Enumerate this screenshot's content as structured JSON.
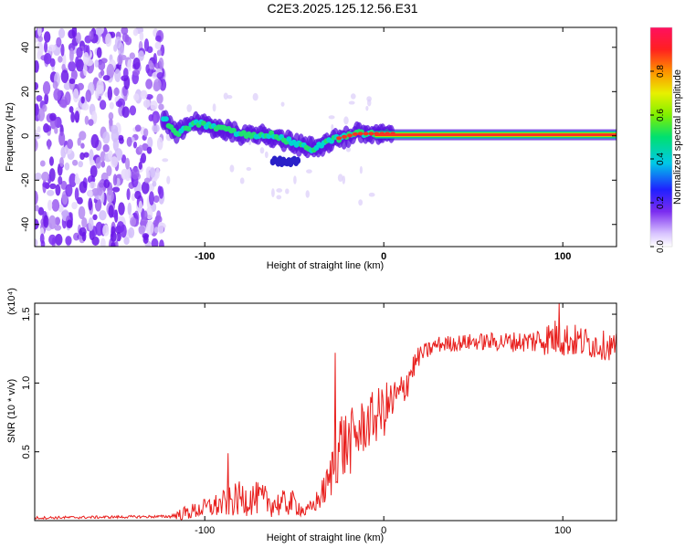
{
  "title": "C2E3.2025.125.12.56.E31",
  "chart_data": [
    {
      "type": "heatmap",
      "xlabel": "Height of straight line (km)",
      "ylabel": "Frequency (Hz)",
      "xlim": [
        -195,
        130
      ],
      "ylim": [
        -50,
        49
      ],
      "x_ticks": [
        -100,
        0,
        100
      ],
      "x_tick_labels": [
        "-100",
        "0",
        "100"
      ],
      "y_ticks": [
        -40,
        -20,
        0,
        20,
        40
      ],
      "y_tick_labels": [
        "-40",
        "-20",
        "0",
        "20",
        "40"
      ],
      "colorbar": {
        "label": "Normalized spectral amplitude",
        "range": [
          0,
          1
        ],
        "ticks": [
          0.0,
          0.2,
          0.4,
          0.6,
          0.8
        ],
        "tick_labels": [
          "0.0",
          "0.2",
          "0.4",
          "0.6",
          "0.8"
        ]
      },
      "ridge": {
        "x": [
          -123,
          -115,
          -105,
          -95,
          -85,
          -75,
          -68,
          -60,
          -55,
          -50,
          -45,
          -40,
          -35,
          -30,
          -25,
          -20,
          -15,
          -10,
          -5,
          0,
          5,
          20,
          60,
          100,
          130
        ],
        "frequency": [
          8,
          1,
          6,
          4,
          2,
          0,
          1,
          0,
          -2,
          -3,
          -5,
          -6,
          -4,
          -2,
          -1,
          0,
          1,
          1,
          1,
          1,
          1,
          0.5,
          0.5,
          0.5,
          0.5
        ]
      },
      "noise_region_x": [
        -195,
        -123
      ]
    },
    {
      "type": "line",
      "xlabel": "Height of straight line (km)",
      "ylabel": "SNR (10 * v/v)",
      "y_multiplier": "(x10⁴)",
      "xlim": [
        -195,
        130
      ],
      "ylim": [
        0,
        1.58
      ],
      "x_ticks": [
        -100,
        0,
        100
      ],
      "x_tick_labels": [
        "-100",
        "0",
        "100"
      ],
      "y_ticks": [
        0.5,
        1.0,
        1.5
      ],
      "y_tick_labels": [
        "0.5",
        "1.0",
        "1.5"
      ],
      "color": "#e8201e",
      "envelope": {
        "x": [
          -195,
          -120,
          -112,
          -100,
          -90,
          -80,
          -70,
          -60,
          -50,
          -44,
          -40,
          -35,
          -30,
          -27,
          -25,
          -20,
          -10,
          0,
          10,
          15,
          20,
          30,
          50,
          80,
          95,
          110,
          130
        ],
        "mean": [
          0.02,
          0.03,
          0.05,
          0.09,
          0.12,
          0.16,
          0.16,
          0.12,
          0.13,
          0.06,
          0.1,
          0.18,
          0.3,
          0.5,
          0.55,
          0.55,
          0.7,
          0.8,
          0.92,
          1.08,
          1.2,
          1.28,
          1.3,
          1.3,
          1.33,
          1.3,
          1.26
        ],
        "amplitude": [
          0.01,
          0.01,
          0.05,
          0.07,
          0.1,
          0.13,
          0.12,
          0.1,
          0.09,
          0.04,
          0.06,
          0.1,
          0.16,
          0.25,
          0.3,
          0.25,
          0.2,
          0.2,
          0.16,
          0.12,
          0.07,
          0.06,
          0.06,
          0.08,
          0.14,
          0.12,
          0.1
        ]
      },
      "peaks": [
        {
          "x": -87,
          "y": 0.49
        },
        {
          "x": -27,
          "y": 1.22
        },
        {
          "x": 98,
          "y": 1.58
        }
      ]
    }
  ]
}
